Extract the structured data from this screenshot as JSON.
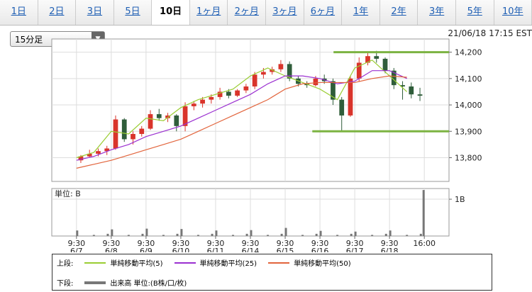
{
  "tabs": [
    "1日",
    "2日",
    "3日",
    "5日",
    "10日",
    "1ヶ月",
    "2ヶ月",
    "3ヶ月",
    "6ヶ月",
    "1年",
    "2年",
    "3年",
    "5年",
    "10年"
  ],
  "selected_tab": 4,
  "dropdown": "15分足",
  "timestamp": "21/06/18 17:15 EST",
  "chart_data": [
    {
      "type": "candlestick",
      "x": [
        0.125,
        0.375,
        0.625,
        0.875,
        1.125,
        1.375,
        1.625,
        1.875,
        2.125,
        2.375,
        2.625,
        2.875,
        3.125,
        3.375,
        3.625,
        3.875,
        4.125,
        4.375,
        4.625,
        4.875,
        5.125,
        5.375,
        5.625,
        5.875,
        6.125,
        6.375,
        6.625,
        6.875,
        7.125,
        7.375,
        7.625,
        7.875,
        8.125,
        8.375,
        8.625,
        8.875,
        9.125,
        9.375,
        9.625,
        9.875
      ],
      "open": [
        13790,
        13805,
        13815,
        13825,
        13835,
        13945,
        13870,
        13890,
        13910,
        13965,
        13950,
        13960,
        13920,
        13995,
        14005,
        14020,
        14030,
        14050,
        14035,
        14055,
        14070,
        14115,
        14125,
        14135,
        14155,
        14100,
        14080,
        14075,
        14100,
        14090,
        14020,
        13960,
        14100,
        14160,
        14185,
        14175,
        14130,
        14075,
        14070,
        14040
      ],
      "high": [
        13810,
        13830,
        13835,
        13845,
        13960,
        13950,
        13900,
        13920,
        13980,
        13985,
        13970,
        13965,
        14010,
        14015,
        14030,
        14040,
        14065,
        14060,
        14060,
        14080,
        14125,
        14140,
        14145,
        14170,
        14165,
        14110,
        14090,
        14110,
        14115,
        14100,
        14030,
        14110,
        14180,
        14200,
        14205,
        14180,
        14140,
        14090,
        14085,
        14065
      ],
      "low": [
        13780,
        13800,
        13805,
        13810,
        13830,
        13860,
        13850,
        13880,
        13905,
        13940,
        13935,
        13900,
        13900,
        13980,
        13990,
        14005,
        14020,
        14025,
        14030,
        14045,
        14060,
        14100,
        14115,
        14125,
        14090,
        14070,
        14065,
        14070,
        14080,
        14000,
        13900,
        13955,
        14090,
        14150,
        14160,
        14120,
        14060,
        14020,
        14025,
        14015
      ],
      "close": [
        13805,
        13815,
        13825,
        13835,
        13945,
        13870,
        13890,
        13910,
        13965,
        13950,
        13960,
        13920,
        13995,
        14005,
        14020,
        14030,
        14050,
        14035,
        14055,
        14070,
        14115,
        14125,
        14135,
        14155,
        14100,
        14080,
        14075,
        14100,
        14090,
        14020,
        13960,
        14100,
        14160,
        14185,
        14175,
        14130,
        14075,
        14070,
        14040,
        14035
      ],
      "up_color": "#d9342b",
      "down_color": "#2f5d3a",
      "series": [
        {
          "name": "単純移動平均(5)",
          "color": "#9acd32",
          "x": [
            0,
            0.5,
            1,
            1.5,
            2,
            2.5,
            3,
            3.5,
            4,
            4.5,
            5,
            5.5,
            6,
            6.5,
            7,
            7.5,
            8,
            8.5,
            9,
            9.5
          ],
          "values": [
            13800,
            13820,
            13900,
            13890,
            13950,
            13940,
            13990,
            14020,
            14040,
            14060,
            14110,
            14140,
            14110,
            14085,
            14060,
            14020,
            14140,
            14170,
            14110,
            14050
          ]
        },
        {
          "name": "単純移動平均(25)",
          "color": "#9b30d0",
          "x": [
            0,
            0.5,
            1,
            1.5,
            2,
            2.5,
            3,
            3.5,
            4,
            4.5,
            5,
            5.5,
            6,
            6.5,
            7,
            7.5,
            8,
            8.5,
            9,
            9.5
          ],
          "values": [
            13790,
            13805,
            13830,
            13850,
            13880,
            13900,
            13920,
            13950,
            13980,
            14010,
            14040,
            14080,
            14110,
            14110,
            14100,
            14080,
            14090,
            14130,
            14130,
            14100
          ]
        },
        {
          "name": "単純移動平均(50)",
          "color": "#e2643c",
          "x": [
            0,
            0.5,
            1,
            1.5,
            2,
            2.5,
            3,
            3.5,
            4,
            4.5,
            5,
            5.5,
            6,
            6.5,
            7,
            7.5,
            8,
            8.5,
            9,
            9.5
          ],
          "values": [
            13760,
            13775,
            13790,
            13810,
            13830,
            13850,
            13870,
            13900,
            13930,
            13960,
            13990,
            14020,
            14060,
            14080,
            14085,
            14085,
            14085,
            14100,
            14110,
            14105
          ]
        }
      ],
      "hlines": [
        {
          "value": 14200,
          "x_from": 7.39
        },
        {
          "value": 13900,
          "x_from": 6.78
        }
      ],
      "hline_color": "#7cb342",
      "legend_label": "上段:",
      "xlim": [
        -0.71,
        10.71
      ],
      "ylim": [
        13710,
        14250
      ],
      "yticks": [
        {
          "value": 13800,
          "label": "13,800"
        },
        {
          "value": 13900,
          "label": "13,900"
        },
        {
          "value": 14000,
          "label": "14,000"
        },
        {
          "value": 14100,
          "label": "14,100"
        },
        {
          "value": 14200,
          "label": "14,200"
        }
      ],
      "grid": true
    },
    {
      "type": "bar",
      "unit_label": "単位: B",
      "name": "出来高 単位:(B株/口/枚)",
      "legend_label": "下段:",
      "color": "#777777",
      "x": [
        0.02,
        0.5,
        0.9,
        1.02,
        1.5,
        1.9,
        2.02,
        2.5,
        2.9,
        3.02,
        3.5,
        3.9,
        4.02,
        4.5,
        4.9,
        5.02,
        5.5,
        5.9,
        6.02,
        6.5,
        6.9,
        7.02,
        7.5,
        7.9,
        8.02,
        8.5,
        8.9,
        9.02,
        9.5,
        9.9,
        9.98
      ],
      "values": [
        0.15,
        0.03,
        0.06,
        0.18,
        0.03,
        0.06,
        0.2,
        0.03,
        0.06,
        0.19,
        0.03,
        0.06,
        0.15,
        0.03,
        0.06,
        0.16,
        0.03,
        0.06,
        0.22,
        0.03,
        0.06,
        0.14,
        0.03,
        0.06,
        0.12,
        0.03,
        0.06,
        0.15,
        0.03,
        0.06,
        1.25
      ],
      "xlim": [
        -0.71,
        10.71
      ],
      "ylim": [
        0,
        1.29
      ],
      "yticks": [
        {
          "value": 1,
          "label": "1B"
        }
      ],
      "xticks": [
        {
          "value": 0,
          "label": "9:30\n6/7"
        },
        {
          "value": 1,
          "label": "9:30\n6/8"
        },
        {
          "value": 2,
          "label": "9:30\n6/9"
        },
        {
          "value": 3,
          "label": "9:30\n6/10"
        },
        {
          "value": 4,
          "label": "9:30\n6/11"
        },
        {
          "value": 5,
          "label": "9:30\n6/14"
        },
        {
          "value": 6,
          "label": "9:30\n6/15"
        },
        {
          "value": 7,
          "label": "9:30\n6/16"
        },
        {
          "value": 8,
          "label": "9:30\n6/17"
        },
        {
          "value": 9,
          "label": "9:30\n6/18"
        },
        {
          "value": 10,
          "label": "16:00"
        }
      ]
    }
  ]
}
